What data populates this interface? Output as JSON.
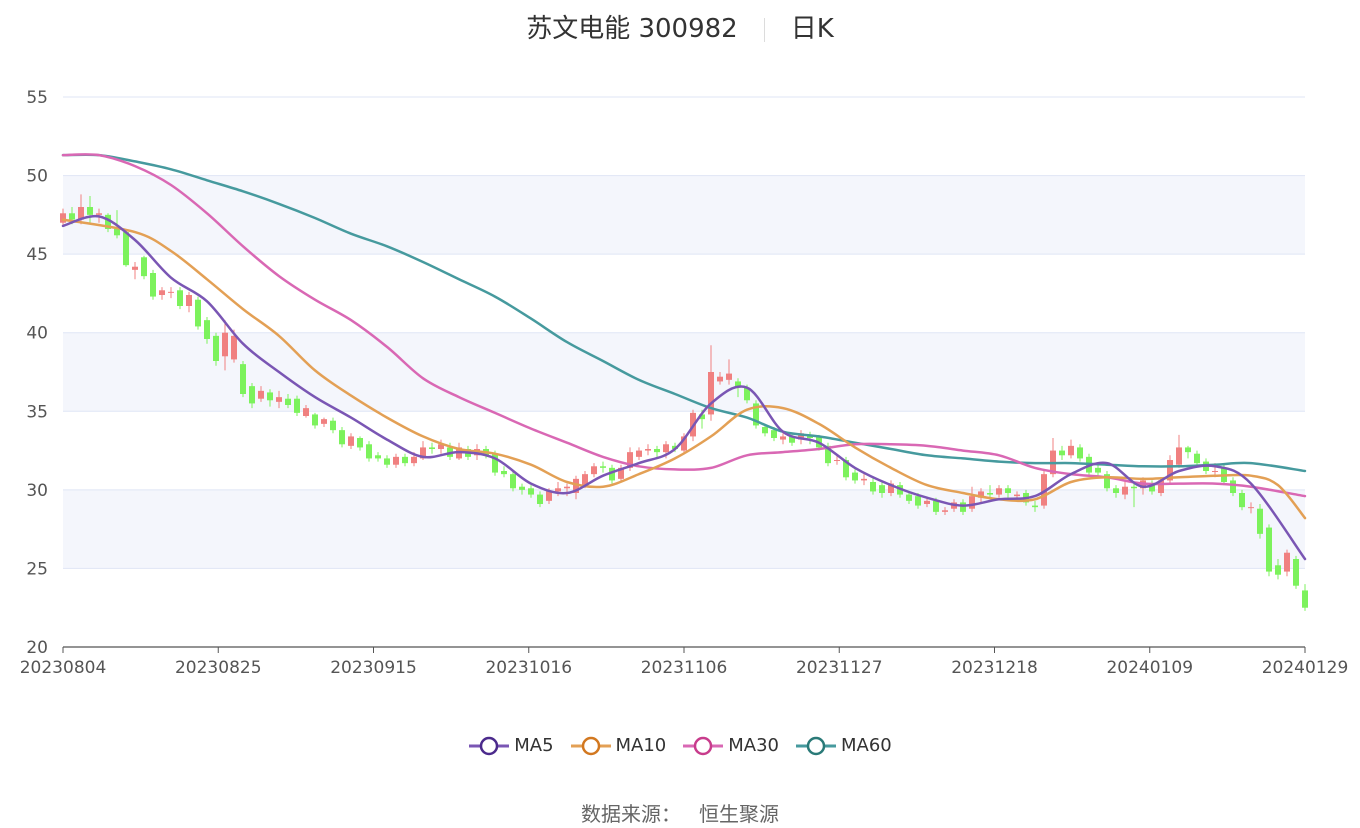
{
  "header": {
    "name": "苏文电能 300982",
    "period": "日K"
  },
  "source": {
    "label": "数据来源：",
    "value": "恒生聚源"
  },
  "colors": {
    "up": "#f08080",
    "down": "#7cf25c",
    "MA5": "#7a56b4",
    "MA10": "#e3a055",
    "MA30": "#d968b4",
    "MA60": "#469a9e"
  },
  "chart_data": {
    "type": "candlestick",
    "xlabels": [
      "20230804",
      "20230825",
      "20230915",
      "20231016",
      "20231106",
      "20231127",
      "20231218",
      "20240109",
      "20240129"
    ],
    "yticks": [
      20,
      25,
      30,
      35,
      40,
      45,
      50,
      55
    ],
    "ylim": [
      20,
      55
    ],
    "legend": [
      "MA5",
      "MA10",
      "MA30",
      "MA60"
    ],
    "grid": true,
    "legend_position": "bottom",
    "candles": [
      [
        47.0,
        47.6,
        46.8,
        47.9
      ],
      [
        47.6,
        47.2,
        46.9,
        48.0
      ],
      [
        47.2,
        48.0,
        46.9,
        48.8
      ],
      [
        48.0,
        47.5,
        47.0,
        48.7
      ],
      [
        47.5,
        47.6,
        47.0,
        47.9
      ],
      [
        47.5,
        46.6,
        46.4,
        47.6
      ],
      [
        46.6,
        46.2,
        46.0,
        47.8
      ],
      [
        46.4,
        44.3,
        44.2,
        46.6
      ],
      [
        44.0,
        44.2,
        43.4,
        44.5
      ],
      [
        44.8,
        43.6,
        43.4,
        44.9
      ],
      [
        43.8,
        42.3,
        42.1,
        44.0
      ],
      [
        42.4,
        42.7,
        42.1,
        42.9
      ],
      [
        42.6,
        42.6,
        42.2,
        42.9
      ],
      [
        42.7,
        41.7,
        41.5,
        42.9
      ],
      [
        41.7,
        42.4,
        41.3,
        42.6
      ],
      [
        42.1,
        40.4,
        40.2,
        42.3
      ],
      [
        40.8,
        39.6,
        39.3,
        41.0
      ],
      [
        39.8,
        38.2,
        37.9,
        40.0
      ],
      [
        38.5,
        40.0,
        37.6,
        40.8
      ],
      [
        38.3,
        39.8,
        38.1,
        40.2
      ],
      [
        38.0,
        36.1,
        35.9,
        38.2
      ],
      [
        36.6,
        35.5,
        35.2,
        36.8
      ],
      [
        35.8,
        36.3,
        35.6,
        36.6
      ],
      [
        36.2,
        35.7,
        35.3,
        36.4
      ],
      [
        35.6,
        35.9,
        35.2,
        36.3
      ],
      [
        35.8,
        35.4,
        35.2,
        36.1
      ],
      [
        35.8,
        34.9,
        34.7,
        36.0
      ],
      [
        34.7,
        35.2,
        34.6,
        35.4
      ],
      [
        34.8,
        34.1,
        33.9,
        34.9
      ],
      [
        34.2,
        34.5,
        34.0,
        34.6
      ],
      [
        34.4,
        33.8,
        33.6,
        34.6
      ],
      [
        33.8,
        32.9,
        32.7,
        34.0
      ],
      [
        32.8,
        33.4,
        32.6,
        33.6
      ],
      [
        33.3,
        32.7,
        32.5,
        33.4
      ],
      [
        32.9,
        32.0,
        31.8,
        33.1
      ],
      [
        32.2,
        32.0,
        31.8,
        32.4
      ],
      [
        32.0,
        31.6,
        31.4,
        32.2
      ],
      [
        31.6,
        32.1,
        31.4,
        32.3
      ],
      [
        32.1,
        31.7,
        31.5,
        32.3
      ],
      [
        31.7,
        32.1,
        31.5,
        32.4
      ],
      [
        32.0,
        32.7,
        31.9,
        33.1
      ],
      [
        32.7,
        32.6,
        32.3,
        33.0
      ],
      [
        32.6,
        32.9,
        32.3,
        33.2
      ],
      [
        32.7,
        32.1,
        31.9,
        33.0
      ],
      [
        32.0,
        32.7,
        31.9,
        33.0
      ],
      [
        32.6,
        32.1,
        31.9,
        32.8
      ],
      [
        32.2,
        32.6,
        31.9,
        32.9
      ],
      [
        32.6,
        32.2,
        32.0,
        32.8
      ],
      [
        32.3,
        31.1,
        30.9,
        32.5
      ],
      [
        31.2,
        31.0,
        30.8,
        31.5
      ],
      [
        31.0,
        30.1,
        29.9,
        31.2
      ],
      [
        30.2,
        30.0,
        29.7,
        30.4
      ],
      [
        30.1,
        29.7,
        29.5,
        30.3
      ],
      [
        29.7,
        29.1,
        28.9,
        29.9
      ],
      [
        29.3,
        29.9,
        29.1,
        30.1
      ],
      [
        29.9,
        30.1,
        29.6,
        30.5
      ],
      [
        30.1,
        30.2,
        29.6,
        30.4
      ],
      [
        29.8,
        30.7,
        29.4,
        30.9
      ],
      [
        30.3,
        31.0,
        30.1,
        31.2
      ],
      [
        31.0,
        31.5,
        30.8,
        31.7
      ],
      [
        31.5,
        31.4,
        31.1,
        31.8
      ],
      [
        31.4,
        30.6,
        30.4,
        31.6
      ],
      [
        30.7,
        31.4,
        30.5,
        31.6
      ],
      [
        31.4,
        32.4,
        31.2,
        32.7
      ],
      [
        32.1,
        32.5,
        31.9,
        32.7
      ],
      [
        32.5,
        32.6,
        32.2,
        32.9
      ],
      [
        32.6,
        32.4,
        32.1,
        32.8
      ],
      [
        32.4,
        32.9,
        32.0,
        33.1
      ],
      [
        32.8,
        32.6,
        32.4,
        33.0
      ],
      [
        32.5,
        33.4,
        32.3,
        33.6
      ],
      [
        33.4,
        34.9,
        33.1,
        35.1
      ],
      [
        34.8,
        34.5,
        33.9,
        35.1
      ],
      [
        34.8,
        37.5,
        34.4,
        39.2
      ],
      [
        36.9,
        37.2,
        36.7,
        37.5
      ],
      [
        37.0,
        37.4,
        36.7,
        38.3
      ],
      [
        36.9,
        36.5,
        35.9,
        37.1
      ],
      [
        36.5,
        35.7,
        35.5,
        36.7
      ],
      [
        35.5,
        34.1,
        33.9,
        35.7
      ],
      [
        34.0,
        33.6,
        33.4,
        34.2
      ],
      [
        33.8,
        33.3,
        33.1,
        34.0
      ],
      [
        33.2,
        33.4,
        32.9,
        33.6
      ],
      [
        33.4,
        33.0,
        32.8,
        33.6
      ],
      [
        33.2,
        33.6,
        32.9,
        33.8
      ],
      [
        33.5,
        33.3,
        32.9,
        33.7
      ],
      [
        33.4,
        32.7,
        32.5,
        33.5
      ],
      [
        32.8,
        31.7,
        31.5,
        33.0
      ],
      [
        31.9,
        31.9,
        31.6,
        32.2
      ],
      [
        31.9,
        30.8,
        30.6,
        32.1
      ],
      [
        31.1,
        30.6,
        30.4,
        31.3
      ],
      [
        30.6,
        30.7,
        30.3,
        31.0
      ],
      [
        30.5,
        29.9,
        29.7,
        30.8
      ],
      [
        30.3,
        29.8,
        29.5,
        30.5
      ],
      [
        29.8,
        30.4,
        29.6,
        30.6
      ],
      [
        30.3,
        29.7,
        29.5,
        30.5
      ],
      [
        29.7,
        29.3,
        29.1,
        29.9
      ],
      [
        29.6,
        29.0,
        28.8,
        29.8
      ],
      [
        29.1,
        29.3,
        28.9,
        29.5
      ],
      [
        29.3,
        28.6,
        28.4,
        29.5
      ],
      [
        28.6,
        28.7,
        28.4,
        28.9
      ],
      [
        28.8,
        29.2,
        28.6,
        29.4
      ],
      [
        29.2,
        28.6,
        28.4,
        29.4
      ],
      [
        28.8,
        29.6,
        28.6,
        30.2
      ],
      [
        29.5,
        29.9,
        29.2,
        30.1
      ],
      [
        29.8,
        29.7,
        29.5,
        30.3
      ],
      [
        29.7,
        30.1,
        29.5,
        30.3
      ],
      [
        30.1,
        29.8,
        29.5,
        30.3
      ],
      [
        29.6,
        29.7,
        29.3,
        29.9
      ],
      [
        29.8,
        29.2,
        29.0,
        30.0
      ],
      [
        29.0,
        28.9,
        28.6,
        29.3
      ],
      [
        29.0,
        31.0,
        28.8,
        31.2
      ],
      [
        31.0,
        32.5,
        30.8,
        33.3
      ],
      [
        32.5,
        32.2,
        31.9,
        32.8
      ],
      [
        32.2,
        32.8,
        32.0,
        33.2
      ],
      [
        32.7,
        32.0,
        31.8,
        32.9
      ],
      [
        32.1,
        31.1,
        30.9,
        32.3
      ],
      [
        31.4,
        31.1,
        30.9,
        31.6
      ],
      [
        31.0,
        30.1,
        29.9,
        31.2
      ],
      [
        30.1,
        29.8,
        29.5,
        30.3
      ],
      [
        29.7,
        30.2,
        29.4,
        30.6
      ],
      [
        30.2,
        30.1,
        28.9,
        30.5
      ],
      [
        30.1,
        30.6,
        29.7,
        30.8
      ],
      [
        30.3,
        29.9,
        29.7,
        30.6
      ],
      [
        29.8,
        30.6,
        29.6,
        30.8
      ],
      [
        30.6,
        31.9,
        30.4,
        32.2
      ],
      [
        31.6,
        32.7,
        31.4,
        33.5
      ],
      [
        32.7,
        32.4,
        32.0,
        32.8
      ],
      [
        32.3,
        31.7,
        31.5,
        32.5
      ],
      [
        31.8,
        31.2,
        31.0,
        32.0
      ],
      [
        31.2,
        31.2,
        30.8,
        31.7
      ],
      [
        31.4,
        30.5,
        30.3,
        31.6
      ],
      [
        30.6,
        29.8,
        29.6,
        30.8
      ],
      [
        29.8,
        28.9,
        28.7,
        30.0
      ],
      [
        28.9,
        28.9,
        28.5,
        29.2
      ],
      [
        28.8,
        27.2,
        26.9,
        29.1
      ],
      [
        27.6,
        24.8,
        24.5,
        27.8
      ],
      [
        25.2,
        24.6,
        24.3,
        25.6
      ],
      [
        24.8,
        26.0,
        24.5,
        26.2
      ],
      [
        25.6,
        23.9,
        23.7,
        25.8
      ],
      [
        23.6,
        22.5,
        22.3,
        24.0
      ]
    ],
    "series": [
      {
        "name": "MA5",
        "values": [
          [
            0,
            46.8
          ],
          [
            4,
            47.4
          ],
          [
            8,
            45.9
          ],
          [
            12,
            43.5
          ],
          [
            16,
            42.0
          ],
          [
            20,
            39.3
          ],
          [
            24,
            37.5
          ],
          [
            28,
            35.9
          ],
          [
            32,
            34.6
          ],
          [
            36,
            33.2
          ],
          [
            40,
            32.1
          ],
          [
            44,
            32.4
          ],
          [
            48,
            32.0
          ],
          [
            52,
            30.4
          ],
          [
            56,
            29.8
          ],
          [
            60,
            30.9
          ],
          [
            64,
            31.7
          ],
          [
            68,
            32.6
          ],
          [
            72,
            35.5
          ],
          [
            76,
            36.5
          ],
          [
            80,
            33.7
          ],
          [
            84,
            33.0
          ],
          [
            88,
            31.4
          ],
          [
            92,
            30.3
          ],
          [
            96,
            29.5
          ],
          [
            100,
            29.0
          ],
          [
            104,
            29.4
          ],
          [
            108,
            29.6
          ],
          [
            112,
            31.0
          ],
          [
            116,
            31.7
          ],
          [
            120,
            30.2
          ],
          [
            124,
            31.2
          ],
          [
            128,
            31.5
          ],
          [
            132,
            30.4
          ],
          [
            138,
            25.6
          ]
        ]
      },
      {
        "name": "MA10",
        "values": [
          [
            0,
            47.2
          ],
          [
            8,
            46.4
          ],
          [
            12,
            45.2
          ],
          [
            16,
            43.4
          ],
          [
            20,
            41.5
          ],
          [
            24,
            39.8
          ],
          [
            28,
            37.6
          ],
          [
            32,
            36.0
          ],
          [
            36,
            34.6
          ],
          [
            40,
            33.4
          ],
          [
            44,
            32.6
          ],
          [
            48,
            32.3
          ],
          [
            52,
            31.6
          ],
          [
            56,
            30.5
          ],
          [
            60,
            30.2
          ],
          [
            64,
            31.0
          ],
          [
            68,
            32.0
          ],
          [
            72,
            33.4
          ],
          [
            76,
            35.1
          ],
          [
            80,
            35.2
          ],
          [
            84,
            34.2
          ],
          [
            88,
            32.7
          ],
          [
            92,
            31.4
          ],
          [
            96,
            30.3
          ],
          [
            100,
            29.8
          ],
          [
            104,
            29.4
          ],
          [
            108,
            29.4
          ],
          [
            112,
            30.5
          ],
          [
            116,
            30.8
          ],
          [
            120,
            30.7
          ],
          [
            124,
            30.8
          ],
          [
            128,
            30.9
          ],
          [
            132,
            30.9
          ],
          [
            135,
            30.3
          ],
          [
            138,
            28.2
          ]
        ]
      },
      {
        "name": "MA30",
        "values": [
          [
            0,
            51.3
          ],
          [
            4,
            51.3
          ],
          [
            8,
            50.6
          ],
          [
            12,
            49.4
          ],
          [
            16,
            47.6
          ],
          [
            20,
            45.5
          ],
          [
            24,
            43.6
          ],
          [
            28,
            42.1
          ],
          [
            32,
            40.8
          ],
          [
            36,
            39.1
          ],
          [
            40,
            37.1
          ],
          [
            44,
            35.9
          ],
          [
            48,
            34.9
          ],
          [
            52,
            33.9
          ],
          [
            56,
            33.0
          ],
          [
            60,
            32.1
          ],
          [
            64,
            31.5
          ],
          [
            68,
            31.3
          ],
          [
            72,
            31.4
          ],
          [
            76,
            32.2
          ],
          [
            80,
            32.4
          ],
          [
            84,
            32.6
          ],
          [
            88,
            32.9
          ],
          [
            92,
            32.9
          ],
          [
            96,
            32.8
          ],
          [
            100,
            32.5
          ],
          [
            104,
            32.2
          ],
          [
            108,
            31.4
          ],
          [
            112,
            31.0
          ],
          [
            116,
            30.8
          ],
          [
            120,
            30.4
          ],
          [
            124,
            30.4
          ],
          [
            128,
            30.4
          ],
          [
            132,
            30.2
          ],
          [
            138,
            29.6
          ]
        ]
      },
      {
        "name": "MA60",
        "values": [
          [
            0,
            51.3
          ],
          [
            4,
            51.3
          ],
          [
            8,
            50.9
          ],
          [
            12,
            50.4
          ],
          [
            16,
            49.7
          ],
          [
            20,
            49.0
          ],
          [
            24,
            48.2
          ],
          [
            28,
            47.3
          ],
          [
            32,
            46.3
          ],
          [
            36,
            45.5
          ],
          [
            40,
            44.5
          ],
          [
            44,
            43.4
          ],
          [
            48,
            42.3
          ],
          [
            52,
            40.9
          ],
          [
            56,
            39.4
          ],
          [
            60,
            38.2
          ],
          [
            64,
            37.0
          ],
          [
            68,
            36.1
          ],
          [
            72,
            35.2
          ],
          [
            76,
            34.6
          ],
          [
            80,
            33.7
          ],
          [
            84,
            33.4
          ],
          [
            88,
            33.0
          ],
          [
            92,
            32.6
          ],
          [
            96,
            32.2
          ],
          [
            100,
            32.0
          ],
          [
            104,
            31.8
          ],
          [
            108,
            31.7
          ],
          [
            112,
            31.7
          ],
          [
            116,
            31.6
          ],
          [
            120,
            31.5
          ],
          [
            124,
            31.5
          ],
          [
            128,
            31.6
          ],
          [
            132,
            31.7
          ],
          [
            138,
            31.2
          ]
        ]
      }
    ]
  }
}
